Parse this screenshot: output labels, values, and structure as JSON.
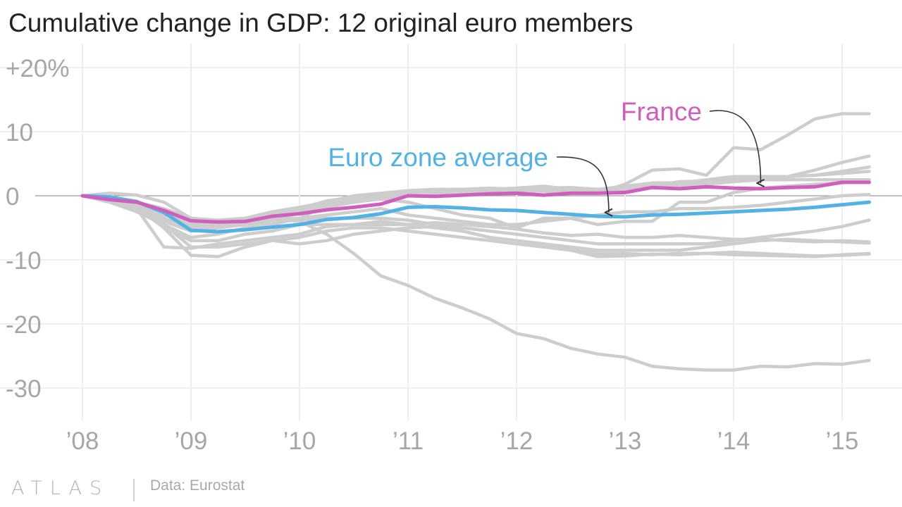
{
  "title": "Cumulative change in GDP: 12 original euro members",
  "footer": {
    "logo": "ATLAS",
    "source": "Data: Eurostat"
  },
  "colors": {
    "france": "#cf5fbf",
    "euro_average": "#52b2e5",
    "other": "#cdcdcd",
    "grid": "#eeeeee",
    "zero_line": "#999999",
    "tick_text": "#a6a6a6"
  },
  "chart_data": {
    "type": "line",
    "title": "Cumulative change in GDP: 12 original euro members",
    "xlabel": "",
    "ylabel": "",
    "xlim": [
      2008.0,
      2015.4
    ],
    "ylim": [
      -32,
      22
    ],
    "yticks": [
      20,
      10,
      0,
      -10,
      -20,
      -30
    ],
    "ytick_labels": [
      "+20%",
      "10",
      "0",
      "-10",
      "-20",
      "-30"
    ],
    "xticks": [
      2008,
      2009,
      2010,
      2011,
      2012,
      2013,
      2014,
      2015
    ],
    "xtick_labels": [
      "’08",
      "’09",
      "’10",
      "’11",
      "’12",
      "’13",
      "’14",
      "’15"
    ],
    "grid": true,
    "x": [
      2008.0,
      2008.25,
      2008.5,
      2008.75,
      2009.0,
      2009.25,
      2009.5,
      2009.75,
      2010.0,
      2010.25,
      2010.5,
      2010.75,
      2011.0,
      2011.25,
      2011.5,
      2011.75,
      2012.0,
      2012.25,
      2012.5,
      2012.75,
      2013.0,
      2013.25,
      2013.5,
      2013.75,
      2014.0,
      2014.25,
      2014.5,
      2014.75,
      2015.0,
      2015.25
    ],
    "series": [
      {
        "name": "France",
        "highlight": "france",
        "values": [
          0,
          -0.6,
          -1.0,
          -2.3,
          -3.9,
          -4.1,
          -4.0,
          -3.2,
          -2.8,
          -2.2,
          -1.8,
          -1.3,
          0.0,
          -0.1,
          0.1,
          0.3,
          0.4,
          0.1,
          0.4,
          0.4,
          0.5,
          1.3,
          1.1,
          1.4,
          1.2,
          1.1,
          1.3,
          1.4,
          2.1,
          2.1
        ]
      },
      {
        "name": "Euro zone average",
        "highlight": "euro_average",
        "values": [
          0,
          -0.2,
          -0.9,
          -2.6,
          -5.4,
          -5.6,
          -5.3,
          -4.9,
          -4.5,
          -3.7,
          -3.4,
          -2.8,
          -1.8,
          -1.7,
          -1.9,
          -2.2,
          -2.3,
          -2.6,
          -2.9,
          -3.2,
          -3.3,
          -3.0,
          -2.9,
          -2.7,
          -2.5,
          -2.3,
          -2.1,
          -1.8,
          -1.4,
          -1.0
        ]
      },
      {
        "highlight": "other",
        "values": [
          0,
          0.4,
          0.1,
          -1.0,
          -3.5,
          -4.5,
          -4.0,
          -3.5,
          -4.0,
          -6.0,
          -9.0,
          -12.5,
          -14.0,
          -16.0,
          -17.5,
          -19.2,
          -21.5,
          -22.3,
          -23.8,
          -24.7,
          -25.2,
          -26.6,
          -27.0,
          -27.2,
          -27.2,
          -26.6,
          -26.7,
          -26.2,
          -26.3,
          -25.7
        ]
      },
      {
        "highlight": "other",
        "values": [
          0,
          0.0,
          -1.8,
          -5.0,
          -9.3,
          -9.5,
          -8.0,
          -7.0,
          -6.5,
          -5.5,
          -5.0,
          -5.0,
          -5.5,
          -6.0,
          -6.5,
          -7.0,
          -7.5,
          -8.0,
          -8.5,
          -9.5,
          -9.4,
          -9.1,
          -9.2,
          -9.0,
          -9.2,
          -9.3,
          -9.4,
          -9.5,
          -9.2,
          -9.0
        ]
      },
      {
        "highlight": "other",
        "values": [
          0,
          -0.5,
          -2.0,
          -4.5,
          -8.0,
          -8.0,
          -7.5,
          -7.0,
          -7.5,
          -7.0,
          -6.0,
          -5.5,
          -5.0,
          -4.8,
          -5.5,
          -6.5,
          -7.0,
          -7.5,
          -8.5,
          -9.0,
          -9.0,
          -9.2,
          -9.0,
          -9.0,
          -8.8,
          -9.0,
          -9.2,
          -9.4,
          -9.3,
          -9.1
        ]
      },
      {
        "highlight": "other",
        "values": [
          0,
          0.0,
          -1.5,
          -5.0,
          -7.0,
          -7.0,
          -6.0,
          -5.5,
          -4.5,
          -4.5,
          -4.5,
          -4.0,
          -4.5,
          -5.0,
          -5.5,
          -6.5,
          -7.0,
          -7.5,
          -8.0,
          -8.5,
          -8.5,
          -8.5,
          -8.5,
          -8.0,
          -7.5,
          -7.0,
          -6.8,
          -7.0,
          -7.2,
          -7.4
        ]
      },
      {
        "highlight": "other",
        "values": [
          0,
          -1.0,
          -2.0,
          -4.0,
          -5.5,
          -5.0,
          -4.5,
          -4.0,
          -3.8,
          -3.5,
          -3.5,
          -3.5,
          -3.8,
          -4.5,
          -5.0,
          -5.5,
          -6.0,
          -6.5,
          -7.0,
          -7.5,
          -7.5,
          -7.5,
          -7.5,
          -7.5,
          -7.0,
          -6.5,
          -6.0,
          -5.5,
          -4.8,
          -3.8
        ]
      },
      {
        "highlight": "other",
        "values": [
          0,
          -0.5,
          -2.0,
          -8.0,
          -8.2,
          -7.5,
          -7.0,
          -6.5,
          -6.0,
          -4.8,
          -4.5,
          -4.5,
          -4.5,
          -4.2,
          -4.5,
          -4.8,
          -5.2,
          -5.8,
          -6.2,
          -6.0,
          -6.5,
          -6.5,
          -6.2,
          -6.5,
          -6.8,
          -6.8,
          -7.0,
          -7.2,
          -7.0,
          -7.2
        ]
      },
      {
        "highlight": "other",
        "values": [
          0,
          -1.0,
          -2.5,
          -4.5,
          -6.5,
          -6.0,
          -5.0,
          -4.5,
          -3.5,
          -3.0,
          -2.5,
          -2.0,
          -3.0,
          -3.5,
          -4.0,
          -4.5,
          -4.5,
          -4.0,
          -3.5,
          -3.0,
          -2.5,
          -2.5,
          -2.0,
          -2.0,
          -1.8,
          -1.5,
          -1.0,
          -0.5,
          0.0,
          0.2
        ]
      },
      {
        "highlight": "other",
        "values": [
          0,
          -0.5,
          -1.5,
          -3.5,
          -5.0,
          -4.5,
          -3.5,
          -3.0,
          -2.0,
          -1.5,
          -1.0,
          -0.5,
          -1.0,
          -2.0,
          -3.0,
          -3.5,
          -5.0,
          -3.5,
          -3.5,
          -4.5,
          -4.0,
          -4.0,
          -1.0,
          -1.0,
          0.5,
          1.2,
          1.5,
          1.8,
          2.0,
          2.5
        ]
      },
      {
        "highlight": "other",
        "values": [
          0,
          -0.5,
          -1.5,
          -3.0,
          -4.0,
          -4.2,
          -3.5,
          -2.5,
          -2.0,
          -0.8,
          -0.2,
          0.3,
          0.8,
          1.0,
          1.0,
          1.2,
          1.0,
          1.2,
          1.3,
          1.0,
          1.5,
          2.0,
          2.0,
          2.2,
          2.5,
          2.8,
          3.0,
          3.2,
          3.5,
          3.8
        ]
      },
      {
        "highlight": "other",
        "values": [
          0,
          -0.2,
          -1.0,
          -2.5,
          -4.5,
          -4.5,
          -3.5,
          -2.5,
          -1.8,
          -1.0,
          0.0,
          0.4,
          0.8,
          0.9,
          0.9,
          1.0,
          1.2,
          1.5,
          1.0,
          0.6,
          1.0,
          1.5,
          2.2,
          2.3,
          2.5,
          2.5,
          2.5,
          2.5,
          2.5,
          2.5
        ]
      },
      {
        "highlight": "other",
        "values": [
          0,
          -0.3,
          -1.0,
          -2.5,
          -4.5,
          -4.8,
          -4.0,
          -3.5,
          -3.5,
          -1.5,
          -0.5,
          0.0,
          0.5,
          0.6,
          0.5,
          0.6,
          0.8,
          1.0,
          1.1,
          0.5,
          1.8,
          4.0,
          4.2,
          3.2,
          7.5,
          7.2,
          9.5,
          12.0,
          12.8,
          12.8
        ]
      },
      {
        "highlight": "other",
        "values": [
          0,
          -0.4,
          -1.2,
          -2.8,
          -4.8,
          -4.8,
          -4.0,
          -3.2,
          -2.5,
          -1.5,
          -0.5,
          0.0,
          0.4,
          0.5,
          0.6,
          0.7,
          1.0,
          1.2,
          1.0,
          1.0,
          1.2,
          1.5,
          2.0,
          2.5,
          3.0,
          3.0,
          3.0,
          3.2,
          3.8,
          4.5
        ]
      },
      {
        "highlight": "other",
        "values": [
          0,
          -0.3,
          -1.0,
          -2.0,
          -3.5,
          -3.8,
          -3.5,
          -3.0,
          -2.5,
          -1.8,
          -1.0,
          -0.5,
          0.0,
          0.2,
          0.3,
          0.5,
          0.8,
          0.7,
          0.6,
          0.6,
          1.0,
          1.2,
          1.5,
          1.8,
          2.2,
          2.5,
          3.0,
          4.0,
          5.2,
          6.2
        ]
      }
    ],
    "annotations": [
      {
        "text": "France",
        "target_series": "France",
        "x": 2014.25,
        "y": 1.1
      },
      {
        "text": "Euro zone average",
        "target_series": "Euro zone average",
        "x": 2012.85,
        "y": -2.6
      }
    ]
  }
}
